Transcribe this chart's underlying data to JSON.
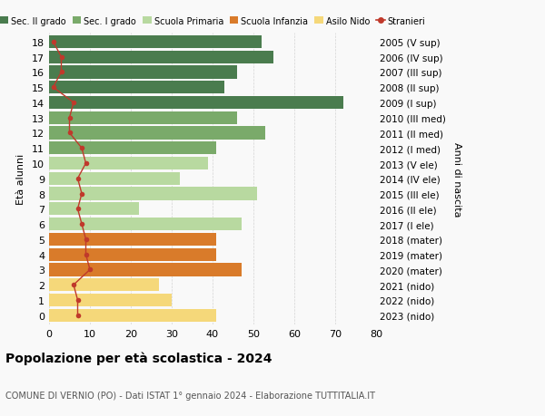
{
  "ages": [
    18,
    17,
    16,
    15,
    14,
    13,
    12,
    11,
    10,
    9,
    8,
    7,
    6,
    5,
    4,
    3,
    2,
    1,
    0
  ],
  "right_labels": [
    "2005 (V sup)",
    "2006 (IV sup)",
    "2007 (III sup)",
    "2008 (II sup)",
    "2009 (I sup)",
    "2010 (III med)",
    "2011 (II med)",
    "2012 (I med)",
    "2013 (V ele)",
    "2014 (IV ele)",
    "2015 (III ele)",
    "2016 (II ele)",
    "2017 (I ele)",
    "2018 (mater)",
    "2019 (mater)",
    "2020 (mater)",
    "2021 (nido)",
    "2022 (nido)",
    "2023 (nido)"
  ],
  "bar_values": [
    52,
    55,
    46,
    43,
    72,
    46,
    53,
    41,
    39,
    32,
    51,
    22,
    47,
    41,
    41,
    47,
    27,
    30,
    41
  ],
  "bar_colors": [
    "#4a7c4e",
    "#4a7c4e",
    "#4a7c4e",
    "#4a7c4e",
    "#4a7c4e",
    "#7aaa6a",
    "#7aaa6a",
    "#7aaa6a",
    "#b8d9a0",
    "#b8d9a0",
    "#b8d9a0",
    "#b8d9a0",
    "#b8d9a0",
    "#d97b2a",
    "#d97b2a",
    "#d97b2a",
    "#f5d87a",
    "#f5d87a",
    "#f5d87a"
  ],
  "stranieri_values": [
    1,
    3,
    3,
    1,
    6,
    5,
    5,
    8,
    9,
    7,
    8,
    7,
    8,
    9,
    9,
    10,
    6,
    7,
    7
  ],
  "legend_labels": [
    "Sec. II grado",
    "Sec. I grado",
    "Scuola Primaria",
    "Scuola Infanzia",
    "Asilo Nido",
    "Stranieri"
  ],
  "legend_colors": [
    "#4a7c4e",
    "#7aaa6a",
    "#b8d9a0",
    "#d97b2a",
    "#f5d87a",
    "#c0392b"
  ],
  "title": "Popolazione per età scolastica - 2024",
  "subtitle": "COMUNE DI VERNIO (PO) - Dati ISTAT 1° gennaio 2024 - Elaborazione TUTTITALIA.IT",
  "ylabel_left": "Età alunni",
  "ylabel_right": "Anni di nascita",
  "xlim": [
    0,
    80
  ],
  "xticks": [
    0,
    10,
    20,
    30,
    40,
    50,
    60,
    70,
    80
  ],
  "stranieri_color": "#c0392b",
  "background_color": "#f9f9f9"
}
